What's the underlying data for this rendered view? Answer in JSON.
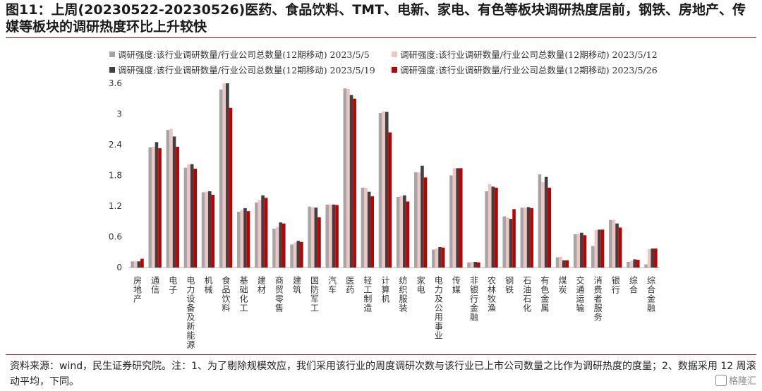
{
  "title": "图11：上周(20230522-20230526)医药、食品饮料、TMT、电新、家电、有色等板块调研热度居前，钢铁、房地产、传媒等板块的调研热度环比上升较快",
  "note": "资料来源：wind，民生证券研究院。注：1、为了剔除规模效应，我们采用该行业的周度调研次数与该行业已上市公司数量之比作为调研热度的度量；2、数据采用 12 周滚动平均，下同。",
  "watermark": "格隆汇",
  "chart_data": {
    "type": "bar",
    "ylim": [
      0,
      3.6
    ],
    "yticks": [
      "0",
      "0.6",
      "1.2",
      "1.8",
      "2.4",
      "3",
      "3.6"
    ],
    "categories": [
      "房地产",
      "通信",
      "电子",
      "电力设备及新能源",
      "机械",
      "食品饮料",
      "基础化工",
      "建材",
      "商贸零售",
      "建筑",
      "国防军工",
      "汽车",
      "医药",
      "轻工制造",
      "计算机",
      "纺织服装",
      "家电",
      "电力及公用事业",
      "传媒",
      "非银行金融",
      "农林牧渔",
      "钢铁",
      "石油石化",
      "有色金属",
      "煤炭",
      "交通运输",
      "消费者服务",
      "银行",
      "综合",
      "综合金融"
    ],
    "series": [
      {
        "name": "调研强度:该行业调研数量/行业公司总数量(12期移动) 2023/5/5",
        "color": "#a6a6a6",
        "values": [
          0.12,
          2.35,
          2.69,
          1.95,
          1.47,
          3.48,
          1.09,
          1.27,
          0.76,
          0.45,
          1.19,
          1.23,
          3.5,
          1.56,
          3.02,
          1.38,
          1.86,
          0.35,
          1.8,
          0.1,
          1.49,
          1.0,
          1.17,
          1.82,
          0.2,
          0.65,
          0.42,
          0.93,
          0.11,
          0.06
        ]
      },
      {
        "name": "调研强度:该行业调研数量/行业公司总数量(12期移动) 2023/5/12",
        "color": "#efc4c4",
        "values": [
          0.12,
          2.36,
          2.71,
          2.02,
          1.48,
          3.6,
          1.12,
          1.32,
          0.79,
          0.49,
          1.18,
          1.23,
          3.49,
          1.56,
          3.05,
          1.4,
          1.86,
          0.37,
          1.94,
          0.11,
          1.63,
          0.98,
          1.17,
          1.67,
          0.21,
          0.66,
          0.73,
          0.93,
          0.13,
          0.36
        ]
      },
      {
        "name": "调研强度:该行业调研数量/行业公司总数量(12期移动) 2023/5/19",
        "color": "#404040",
        "values": [
          0.12,
          2.45,
          2.56,
          2.02,
          1.49,
          3.6,
          1.16,
          1.41,
          0.88,
          0.52,
          1.17,
          1.23,
          3.37,
          1.48,
          3.04,
          1.41,
          1.99,
          0.4,
          1.94,
          0.11,
          1.58,
          0.95,
          1.18,
          1.77,
          0.14,
          0.68,
          0.74,
          0.86,
          0.16,
          0.37
        ]
      },
      {
        "name": "调研强度:该行业调研数量/行业公司总数量(12期移动) 2023/5/26",
        "color": "#c00000",
        "values": [
          0.17,
          2.33,
          2.36,
          1.93,
          1.42,
          3.12,
          1.1,
          1.36,
          0.86,
          0.5,
          0.98,
          1.22,
          3.3,
          1.39,
          2.64,
          1.29,
          1.76,
          0.39,
          1.94,
          0.1,
          1.56,
          1.14,
          1.16,
          1.56,
          0.14,
          0.63,
          0.74,
          0.78,
          0.15,
          0.37
        ]
      }
    ]
  }
}
